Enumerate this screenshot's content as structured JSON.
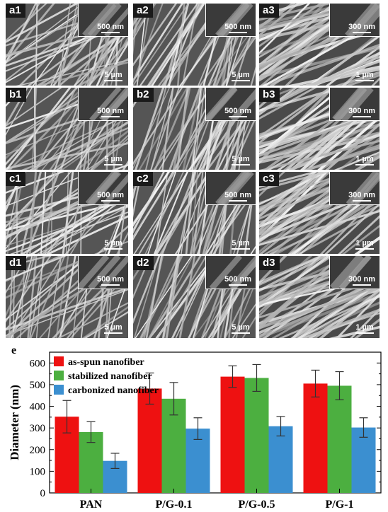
{
  "panels": [
    {
      "id": "a1",
      "label": "a1",
      "inset_scale": "500 nm",
      "main_scale": "5 µm"
    },
    {
      "id": "a2",
      "label": "a2",
      "inset_scale": "500 nm",
      "main_scale": "5 µm"
    },
    {
      "id": "a3",
      "label": "a3",
      "inset_scale": "300 nm",
      "main_scale": "1 µm"
    },
    {
      "id": "b1",
      "label": "b1",
      "inset_scale": "500 nm",
      "main_scale": "5 µm"
    },
    {
      "id": "b2",
      "label": "b2",
      "inset_scale": "500 nm",
      "main_scale": "5 µm"
    },
    {
      "id": "b3",
      "label": "b3",
      "inset_scale": "300 nm",
      "main_scale": "1 µm"
    },
    {
      "id": "c1",
      "label": "c1",
      "inset_scale": "500 nm",
      "main_scale": "5 µm"
    },
    {
      "id": "c2",
      "label": "c2",
      "inset_scale": "500 nm",
      "main_scale": "5 µm"
    },
    {
      "id": "c3",
      "label": "c3",
      "inset_scale": "300 nm",
      "main_scale": "1 µm"
    },
    {
      "id": "d1",
      "label": "d1",
      "inset_scale": "500 nm",
      "main_scale": "5 µm"
    },
    {
      "id": "d2",
      "label": "d2",
      "inset_scale": "500 nm",
      "main_scale": "5 µm"
    },
    {
      "id": "d3",
      "label": "d3",
      "inset_scale": "300 nm",
      "main_scale": "1 µm"
    }
  ],
  "chart_data": {
    "type": "bar",
    "panel_label": "e",
    "title": "",
    "xlabel": "",
    "ylabel": "Diameter (nm)",
    "ylim": [
      0,
      650
    ],
    "yticks": [
      0,
      100,
      200,
      300,
      400,
      500,
      600
    ],
    "categories": [
      "PAN",
      "P/G-0.1",
      "P/G-0.5",
      "P/G-1"
    ],
    "series": [
      {
        "name": "as-spun nanofiber",
        "color": "#ee1111",
        "values": [
          352,
          482,
          537,
          505
        ],
        "errors": [
          75,
          72,
          50,
          62
        ]
      },
      {
        "name": "stabilized nanofiber",
        "color": "#4caf40",
        "values": [
          281,
          435,
          531,
          495
        ],
        "errors": [
          48,
          75,
          62,
          65
        ]
      },
      {
        "name": "carbonized nanofiber",
        "color": "#3b8fd0",
        "values": [
          148,
          297,
          308,
          302
        ],
        "errors": [
          35,
          50,
          45,
          45
        ]
      }
    ],
    "legend_position": "top-left",
    "grid": false
  }
}
